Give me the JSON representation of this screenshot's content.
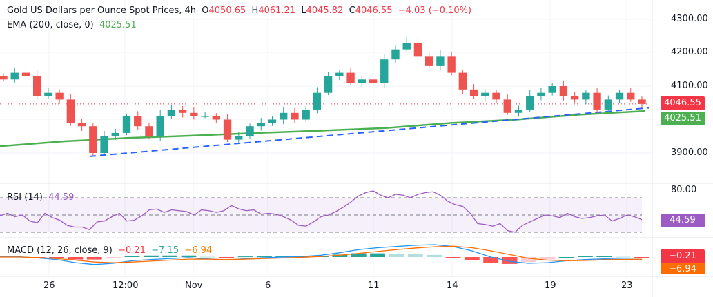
{
  "header": {
    "title": "Gold US Dollars per Ounce Spot Prices, 4h",
    "o_label": "O",
    "o": "4050.65",
    "h_label": "H",
    "h": "4061.21",
    "l_label": "L",
    "l": "4045.82",
    "c_label": "C",
    "c": "4046.55",
    "change": "−4.03 (−0.10%)"
  },
  "ema_legend": {
    "label": "EMA (200, close, 0)",
    "value": "4025.51"
  },
  "rsi_legend": {
    "label": "RSI (14)",
    "value": "44.59"
  },
  "macd_legend": {
    "label": "MACD (12, 26, close, 9)",
    "hist": "−0.21",
    "macd": "−7.15",
    "signal": "−6.94"
  },
  "tags": {
    "price": "4046.55",
    "ema": "4025.51",
    "rsi": "44.59",
    "macd_hist": "−0.21",
    "signal": "−6.94"
  },
  "colors": {
    "up": "#26a69a",
    "down": "#ef5350",
    "ema": "#4caf50",
    "trend": "#2962ff",
    "rsi": "#9c5cc4",
    "macd": "#2196f3",
    "signal": "#ff6d00"
  },
  "chart_data": {
    "type": "candlestick",
    "y_ticks": [
      "4300.00",
      "4200.00",
      "4100.00",
      "3900.00"
    ],
    "ylim": [
      3860,
      4330
    ],
    "x_ticks": [
      "26",
      "12:00",
      "Nov",
      "6",
      "11",
      "14",
      "19",
      "23"
    ],
    "close": [
      4120,
      4140,
      4130,
      4070,
      4080,
      4060,
      3990,
      3980,
      3900,
      3950,
      3960,
      4010,
      3980,
      3950,
      4010,
      4030,
      4020,
      4010,
      4010,
      4000,
      3940,
      3950,
      3980,
      3990,
      4000,
      4020,
      4000,
      4030,
      4080,
      4130,
      4140,
      4110,
      4120,
      4110,
      4180,
      4210,
      4230,
      4190,
      4160,
      4190,
      4140,
      4090,
      4070,
      4080,
      4060,
      4020,
      4030,
      4070,
      4080,
      4100,
      4070,
      4060,
      4080,
      4030,
      4060,
      4080,
      4060,
      4046.55
    ],
    "ema": [
      3920,
      3935,
      3945,
      3952,
      3960,
      3967,
      3975,
      3990,
      4000,
      4015,
      4025.51
    ],
    "trendline": [
      3890,
      4035
    ],
    "rsi": {
      "levels": [
        70,
        50,
        30
      ],
      "top_tick": "80.00",
      "values": [
        49,
        52,
        48,
        50,
        43,
        41,
        52,
        47,
        44,
        38,
        36,
        36,
        33,
        42,
        43,
        48,
        52,
        43,
        44,
        49,
        56,
        57,
        53,
        56,
        55,
        54,
        50,
        56,
        55,
        53,
        55,
        61,
        57,
        55,
        56,
        51,
        52,
        51,
        48,
        44,
        38,
        37,
        42,
        48,
        50,
        54,
        59,
        65,
        72,
        76,
        78,
        73,
        70,
        74,
        73,
        70,
        74,
        76,
        77,
        73,
        66,
        62,
        60,
        52,
        40,
        39,
        37,
        40,
        32,
        30,
        38,
        42,
        46,
        50,
        49,
        47,
        52,
        48,
        46,
        47,
        49,
        50,
        43,
        46,
        50,
        48,
        44.59
      ]
    },
    "macd": {
      "macd": [
        2,
        1,
        -3,
        -8,
        -18,
        -24,
        -20,
        -12,
        -8,
        -5,
        -2,
        -6,
        -10,
        -5,
        -2,
        0,
        2,
        6,
        14,
        24,
        30,
        34,
        38,
        40,
        34,
        20,
        0,
        -14,
        -20,
        -18,
        -12,
        -8,
        -6,
        -7,
        -7.15
      ],
      "signal": [
        0,
        0,
        -2,
        -5,
        -10,
        -16,
        -18,
        -16,
        -13,
        -10,
        -7,
        -7,
        -8,
        -7,
        -5,
        -3,
        -1,
        2,
        6,
        12,
        18,
        24,
        29,
        33,
        35,
        30,
        20,
        8,
        -4,
        -10,
        -12,
        -11,
        -9,
        -8,
        -6.94
      ]
    }
  }
}
